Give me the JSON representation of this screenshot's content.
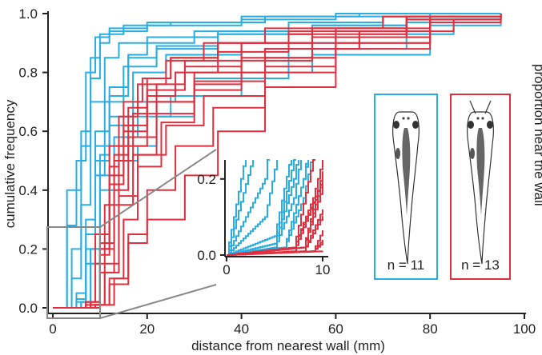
{
  "chart_data": {
    "type": "line",
    "title": "",
    "xlabel": "distance from nearest wall (mm)",
    "ylabel": "cumulative frequency",
    "right_axis_label_partial": "proportion near the wall",
    "xlim": [
      0,
      100
    ],
    "ylim": [
      0,
      1.0
    ],
    "xticks": [
      "0",
      "20",
      "40",
      "60",
      "80",
      "100"
    ],
    "yticks": [
      "0.0",
      "0.2",
      "0.4",
      "0.6",
      "0.8",
      "1.0"
    ],
    "grid": false,
    "colors": {
      "group_a": "#29aee3",
      "group_b": "#e0303f"
    },
    "groups": [
      {
        "legend_label": "n = 11",
        "color": "#29aee3"
      },
      {
        "legend_label": "n = 13",
        "color": "#e0303f"
      }
    ],
    "series": [
      {
        "group": "group_a",
        "x": [
          0,
          3,
          6,
          8,
          10,
          12,
          20,
          40,
          60,
          80,
          95
        ],
        "y": [
          0,
          0.4,
          0.55,
          0.78,
          0.9,
          0.95,
          0.97,
          0.99,
          1.0,
          1.0,
          1.0
        ]
      },
      {
        "group": "group_a",
        "x": [
          0,
          4,
          6,
          8,
          10,
          15,
          25,
          45,
          65,
          85,
          95
        ],
        "y": [
          0,
          0.2,
          0.6,
          0.85,
          0.93,
          0.96,
          0.97,
          0.99,
          1.0,
          1.0,
          1.0
        ]
      },
      {
        "group": "group_a",
        "x": [
          0,
          3,
          5,
          7,
          9,
          12,
          20,
          40,
          60,
          80,
          95
        ],
        "y": [
          0,
          0.28,
          0.5,
          0.8,
          0.92,
          0.94,
          0.96,
          0.98,
          0.99,
          1.0,
          1.0
        ]
      },
      {
        "group": "group_a",
        "x": [
          0,
          4,
          6,
          8,
          11,
          14,
          20,
          35,
          50,
          70,
          95
        ],
        "y": [
          0,
          0.1,
          0.35,
          0.7,
          0.85,
          0.9,
          0.92,
          0.94,
          0.97,
          0.99,
          1.0
        ]
      },
      {
        "group": "group_a",
        "x": [
          0,
          5,
          7,
          9,
          12,
          16,
          22,
          35,
          55,
          75,
          95
        ],
        "y": [
          0,
          0.05,
          0.3,
          0.6,
          0.75,
          0.85,
          0.89,
          0.93,
          0.96,
          0.99,
          1.0
        ]
      },
      {
        "group": "group_a",
        "x": [
          0,
          5,
          7,
          9,
          12,
          17,
          24,
          40,
          60,
          80,
          95
        ],
        "y": [
          0,
          0.03,
          0.2,
          0.5,
          0.65,
          0.8,
          0.86,
          0.9,
          0.94,
          0.98,
          1.0
        ]
      },
      {
        "group": "group_a",
        "x": [
          0,
          6,
          8,
          10,
          13,
          18,
          26,
          45,
          65,
          85,
          95
        ],
        "y": [
          0,
          0.02,
          0.2,
          0.45,
          0.58,
          0.7,
          0.8,
          0.88,
          0.93,
          0.98,
          1.0
        ]
      },
      {
        "group": "group_a",
        "x": [
          0,
          5,
          7,
          9,
          12,
          18,
          25,
          40,
          55,
          80,
          95
        ],
        "y": [
          0,
          0.03,
          0.25,
          0.55,
          0.62,
          0.65,
          0.72,
          0.8,
          0.86,
          0.96,
          1.0
        ]
      },
      {
        "group": "group_a",
        "x": [
          0,
          6,
          8,
          10,
          13,
          18,
          22,
          30,
          50,
          75,
          95
        ],
        "y": [
          0,
          0.02,
          0.15,
          0.4,
          0.5,
          0.55,
          0.65,
          0.78,
          0.88,
          0.97,
          1.0
        ]
      },
      {
        "group": "group_a",
        "x": [
          0,
          5,
          7,
          9,
          11,
          15,
          22,
          35,
          55,
          75,
          95
        ],
        "y": [
          0,
          0.02,
          0.15,
          0.45,
          0.7,
          0.82,
          0.88,
          0.93,
          0.96,
          0.99,
          1.0
        ]
      },
      {
        "group": "group_a",
        "x": [
          0,
          6,
          8,
          10,
          12,
          16,
          20,
          30,
          50,
          70,
          95
        ],
        "y": [
          0,
          0.02,
          0.2,
          0.52,
          0.72,
          0.86,
          0.9,
          0.94,
          0.97,
          0.99,
          1.0
        ]
      },
      {
        "group": "group_b",
        "x": [
          0,
          7,
          9,
          11,
          14,
          20,
          30,
          45,
          65,
          85,
          95
        ],
        "y": [
          0,
          0.02,
          0.15,
          0.35,
          0.55,
          0.7,
          0.8,
          0.88,
          0.94,
          0.98,
          1.0
        ]
      },
      {
        "group": "group_b",
        "x": [
          0,
          7,
          10,
          12,
          15,
          20,
          28,
          40,
          60,
          80,
          95
        ],
        "y": [
          0,
          0.01,
          0.2,
          0.45,
          0.62,
          0.74,
          0.82,
          0.9,
          0.95,
          0.99,
          1.0
        ]
      },
      {
        "group": "group_b",
        "x": [
          0,
          8,
          10,
          13,
          16,
          22,
          30,
          45,
          60,
          80,
          95
        ],
        "y": [
          0,
          0.01,
          0.12,
          0.4,
          0.58,
          0.7,
          0.77,
          0.85,
          0.92,
          0.98,
          1.0
        ]
      },
      {
        "group": "group_b",
        "x": [
          0,
          7,
          9,
          12,
          15,
          19,
          25,
          35,
          55,
          75,
          95
        ],
        "y": [
          0,
          0.02,
          0.25,
          0.55,
          0.7,
          0.78,
          0.85,
          0.9,
          0.95,
          0.99,
          1.0
        ]
      },
      {
        "group": "group_b",
        "x": [
          0,
          8,
          11,
          14,
          18,
          24,
          32,
          45,
          60,
          80,
          95
        ],
        "y": [
          0,
          0.01,
          0.15,
          0.38,
          0.52,
          0.62,
          0.72,
          0.82,
          0.9,
          0.98,
          1.0
        ]
      },
      {
        "group": "group_b",
        "x": [
          0,
          9,
          12,
          16,
          20,
          28,
          35,
          45,
          60,
          80,
          95
        ],
        "y": [
          0,
          0.01,
          0.08,
          0.22,
          0.3,
          0.45,
          0.6,
          0.75,
          0.88,
          0.97,
          1.0
        ]
      },
      {
        "group": "group_b",
        "x": [
          0,
          7,
          10,
          13,
          17,
          22,
          28,
          40,
          55,
          75,
          95
        ],
        "y": [
          0,
          0.02,
          0.2,
          0.5,
          0.66,
          0.76,
          0.84,
          0.9,
          0.95,
          0.99,
          1.0
        ]
      },
      {
        "group": "group_b",
        "x": [
          0,
          8,
          10,
          12,
          15,
          20,
          26,
          35,
          50,
          75,
          95
        ],
        "y": [
          0,
          0.02,
          0.18,
          0.42,
          0.6,
          0.72,
          0.8,
          0.87,
          0.93,
          0.98,
          1.0
        ]
      },
      {
        "group": "group_b",
        "x": [
          0,
          9,
          11,
          14,
          17,
          22,
          30,
          40,
          55,
          75,
          95
        ],
        "y": [
          0,
          0.01,
          0.12,
          0.35,
          0.52,
          0.66,
          0.76,
          0.85,
          0.92,
          0.98,
          1.0
        ]
      },
      {
        "group": "group_b",
        "x": [
          0,
          8,
          10,
          13,
          16,
          20,
          25,
          35,
          50,
          75,
          95
        ],
        "y": [
          0,
          0.02,
          0.22,
          0.52,
          0.68,
          0.78,
          0.85,
          0.9,
          0.94,
          0.99,
          1.0
        ]
      },
      {
        "group": "group_b",
        "x": [
          0,
          9,
          12,
          15,
          18,
          23,
          30,
          40,
          55,
          75,
          95
        ],
        "y": [
          0,
          0.01,
          0.1,
          0.3,
          0.48,
          0.63,
          0.74,
          0.84,
          0.92,
          0.98,
          1.0
        ]
      },
      {
        "group": "group_b",
        "x": [
          0,
          10,
          13,
          16,
          20,
          26,
          34,
          45,
          60,
          80,
          95
        ],
        "y": [
          0,
          0.01,
          0.1,
          0.25,
          0.4,
          0.55,
          0.68,
          0.8,
          0.9,
          0.97,
          1.0
        ]
      },
      {
        "group": "group_b",
        "x": [
          0,
          8,
          10,
          12,
          14,
          18,
          24,
          32,
          45,
          70,
          95
        ],
        "y": [
          0,
          0.02,
          0.2,
          0.48,
          0.65,
          0.76,
          0.84,
          0.9,
          0.95,
          0.99,
          1.0
        ]
      }
    ],
    "inset": {
      "xlim": [
        0,
        10
      ],
      "ylim": [
        0,
        0.25
      ],
      "xticks": [
        "0",
        "10"
      ],
      "yticks": [
        "0.0",
        "0.2"
      ],
      "zoom_region": {
        "x": [
          0,
          10
        ],
        "y": [
          0,
          0.25
        ]
      }
    }
  }
}
